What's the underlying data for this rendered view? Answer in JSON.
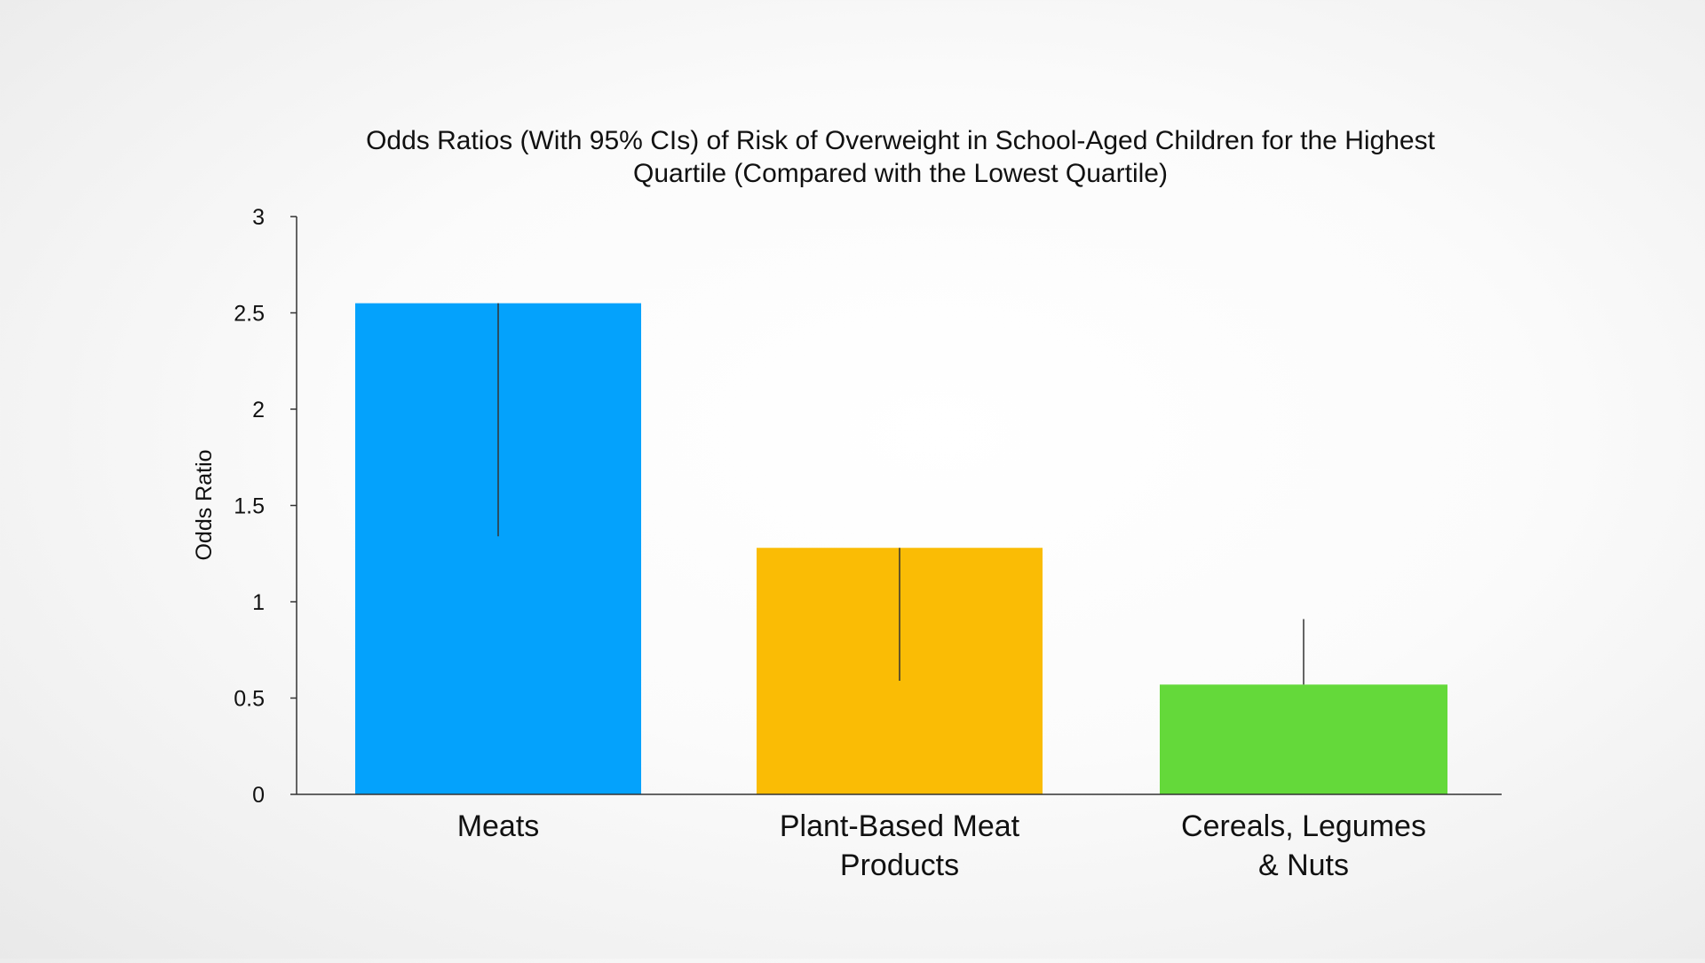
{
  "chart_data": {
    "type": "bar",
    "title_lines": [
      "Odds Ratios (With 95% CIs) of Risk of Overweight in School-Aged Children for the Highest",
      "Quartile (Compared with the Lowest Quartile)"
    ],
    "xlabel": "",
    "ylabel": "Odds Ratio",
    "ylim": [
      0,
      3
    ],
    "yticks": [
      "0",
      "0.5",
      "1",
      "1.5",
      "2",
      "2.5",
      "3"
    ],
    "categories": [
      {
        "lines": [
          "Meats"
        ]
      },
      {
        "lines": [
          "Plant-Based Meat",
          "Products"
        ]
      },
      {
        "lines": [
          "Cereals, Legumes",
          "& Nuts"
        ]
      }
    ],
    "values": [
      2.55,
      1.28,
      0.57
    ],
    "ci_lower": [
      1.34,
      0.59,
      0.57
    ],
    "ci_upper": [
      2.55,
      1.28,
      0.91
    ],
    "colors": [
      "#04a2fc",
      "#fabc05",
      "#64d93a"
    ],
    "grid": false,
    "legend": "none"
  }
}
